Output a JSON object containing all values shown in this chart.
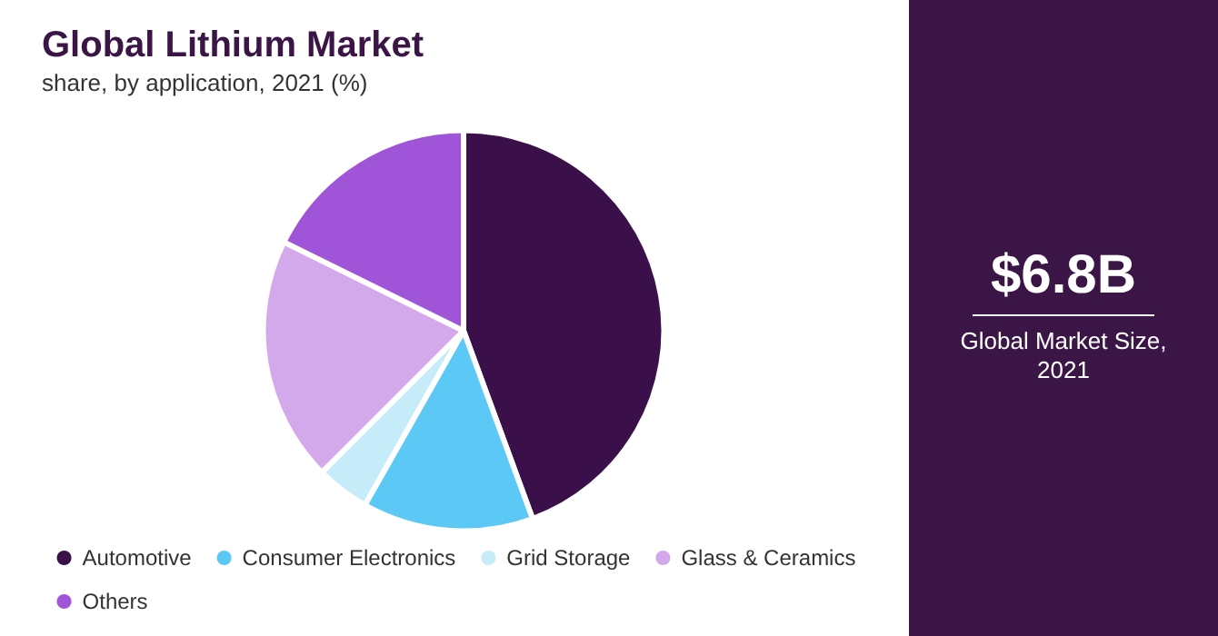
{
  "chart_data": {
    "type": "pie",
    "title": "Global Lithium Market",
    "subtitle": "share, by application, 2021 (%)",
    "categories": [
      "Automotive",
      "Consumer Electronics",
      "Grid Storage",
      "Glass & Ceramics",
      "Others"
    ],
    "values": [
      44.4,
      13.8,
      4.3,
      19.8,
      17.7
    ],
    "colors": [
      "#3a0f4a",
      "#5bc8f5",
      "#c6ecfa",
      "#d4a9ec",
      "#a055d8"
    ],
    "legend": "bottom",
    "annotations": [
      "$6.8B",
      "Global Market Size, 2021"
    ]
  }
}
